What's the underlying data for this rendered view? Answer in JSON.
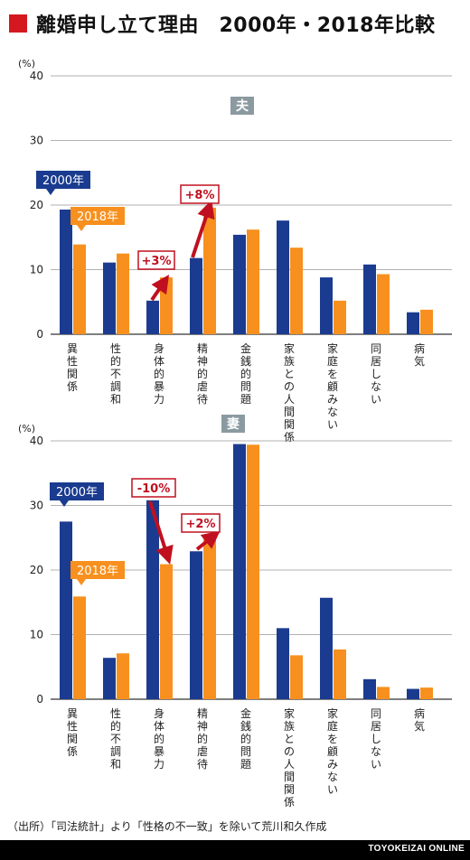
{
  "title": "離婚申し立て理由　2000年・2018年比較",
  "source_note": "（出所）「司法統計」より「性格の不一致」を除いて荒川和久作成",
  "brand": "TOYOKEIZAI ONLINE",
  "colors": {
    "title_square": "#d41820",
    "series_2000": "#1a3b8f",
    "series_2018": "#f7901e",
    "callout": "#c0101f",
    "badge": "#8a9aa0"
  },
  "chart_data": [
    {
      "type": "bar",
      "badge": "夫",
      "ylabel": "(%)",
      "ylim": [
        0,
        40
      ],
      "yticks": [
        0,
        10,
        20,
        30,
        40
      ],
      "grid": true,
      "categories": [
        "異性関係",
        "性的不調和",
        "身体的暴力",
        "精神的虐待",
        "金銭的問題",
        "家族との人間関係",
        "家庭を顧みない",
        "同居しない",
        "病気"
      ],
      "series": [
        {
          "name": "2000年",
          "values": [
            19.3,
            11.1,
            5.2,
            11.8,
            15.4,
            17.6,
            8.8,
            10.8,
            3.4
          ]
        },
        {
          "name": "2018年",
          "values": [
            13.9,
            12.5,
            8.8,
            19.6,
            16.2,
            13.4,
            5.2,
            9.3,
            3.8
          ]
        }
      ],
      "annotations": [
        {
          "text": "+3%",
          "category_index": 2
        },
        {
          "text": "+8%",
          "category_index": 3
        }
      ]
    },
    {
      "type": "bar",
      "badge": "妻",
      "ylabel": "(%)",
      "ylim": [
        0,
        40
      ],
      "yticks": [
        0,
        10,
        20,
        30,
        40
      ],
      "grid": true,
      "categories": [
        "異性関係",
        "性的不調和",
        "身体的暴力",
        "精神的虐待",
        "金銭的問題",
        "家族との人間関係",
        "家庭を顧みない",
        "同居しない",
        "病気"
      ],
      "series": [
        {
          "name": "2000年",
          "values": [
            27.5,
            6.4,
            30.8,
            22.9,
            39.5,
            11.0,
            15.7,
            3.1,
            1.6
          ]
        },
        {
          "name": "2018年",
          "values": [
            15.9,
            7.1,
            20.9,
            25.1,
            39.4,
            6.8,
            7.7,
            1.9,
            1.8
          ]
        }
      ],
      "annotations": [
        {
          "text": "-10%",
          "category_index": 2
        },
        {
          "text": "+2%",
          "category_index": 3
        }
      ]
    }
  ]
}
